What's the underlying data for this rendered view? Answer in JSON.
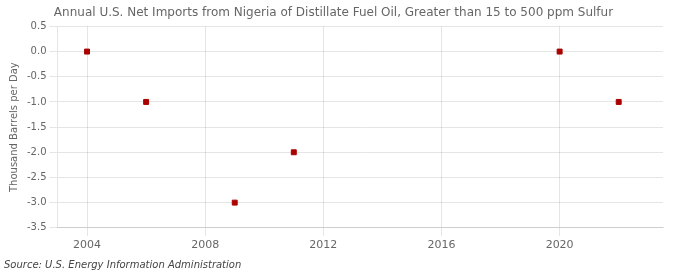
{
  "chart_data": {
    "type": "scatter",
    "title": "Annual U.S. Net Imports from Nigeria of Distillate Fuel Oil, Greater than 15 to 500 ppm Sulfur",
    "ylabel": "Thousand Barrels per Day",
    "annotation": "Source: U.S. Energy Information Administration",
    "x": [
      2004,
      2006,
      2009,
      2011,
      2020,
      2022
    ],
    "values": [
      0.0,
      -1.0,
      -3.0,
      -2.0,
      0.0,
      -1.0
    ],
    "color": "#aa0000",
    "marker": "square",
    "xlim": [
      2003,
      2023.5
    ],
    "ylim": [
      -3.5,
      0.5
    ],
    "xticks": [
      2004,
      2008,
      2012,
      2016,
      2020
    ],
    "yticks": [
      0.5,
      {
        "value": 0,
        "label": "0.0"
      },
      -0.5,
      {
        "value": -1,
        "label": "-1.0"
      },
      -1.5,
      {
        "value": -2,
        "label": "-2.0"
      },
      -2.5,
      {
        "value": -3,
        "label": "-3.0"
      },
      -3.5
    ],
    "grid": true
  }
}
